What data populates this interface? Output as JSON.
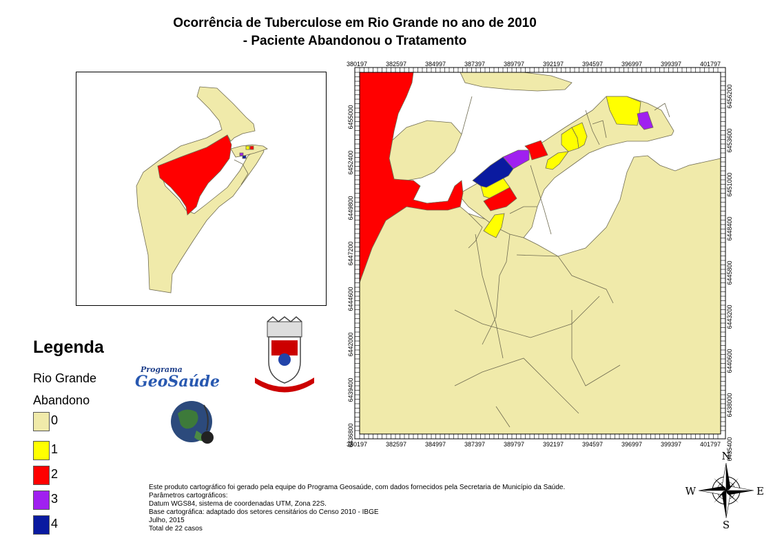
{
  "title": {
    "line1": "Ocorrência de Tuberculose  em Rio Grande no ano de 2010",
    "line2": "- Paciente Abandonou o Tratamento"
  },
  "legend": {
    "heading": "Legenda",
    "layer": "Rio Grande",
    "field": "Abandono",
    "classes": [
      {
        "label": "0",
        "color": "#F0EAAA"
      },
      {
        "label": "1",
        "color": "#FFFF00"
      },
      {
        "label": "2",
        "color": "#FF0000"
      },
      {
        "label": "3",
        "color": "#A020F0"
      },
      {
        "label": "4",
        "color": "#0A1AA0"
      }
    ]
  },
  "grid": {
    "x_ticks": [
      "380197",
      "382597",
      "384997",
      "387397",
      "389797",
      "392197",
      "394597",
      "396997",
      "399397",
      "401797"
    ],
    "y_ticks_left": [
      "6455000",
      "6452400",
      "6449800",
      "6447200",
      "6444600",
      "6442000",
      "6439400",
      "6436800"
    ],
    "y_ticks_right": [
      "6456200",
      "6453600",
      "6451000",
      "6448400",
      "6445800",
      "6443200",
      "6440600",
      "6438000",
      "6435400"
    ]
  },
  "notes": [
    "Este produto cartográfico foi gerado pela equipe do Programa Geosaúde, com dados fornecidos pela Secretaria de Município da Saúde.",
    "Parâmetros cartográficos:",
    "Datum WGS84, sistema de coordenadas UTM, Zona 22S.",
    "Base cartográfica: adaptado dos setores censitários do Censo 2010 - IBGE",
    "Julho, 2015",
    "Total de 22 casos"
  ],
  "logo": {
    "line1": "Programa",
    "line2": "GeoSaúde"
  },
  "compass": {
    "n": "N",
    "s": "S",
    "e": "E",
    "w": "W"
  },
  "colors": {
    "background_land": "#F0EAAA",
    "border": "#8A8A70"
  }
}
